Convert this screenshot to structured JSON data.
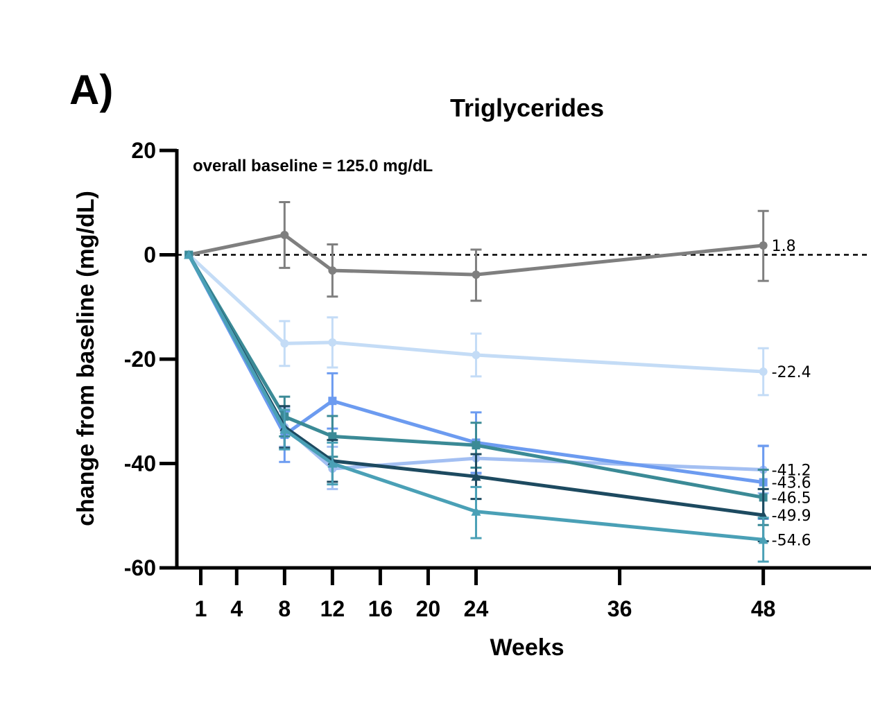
{
  "panel_label": "A)",
  "chart_data": {
    "type": "line",
    "title": "Triglycerides",
    "xlabel": "Weeks",
    "ylabel": "change from baseline (mg/dL)",
    "annotation": "overall baseline = 125.0 mg/dL",
    "xlim": [
      -1,
      57
    ],
    "ylim": [
      -60,
      20
    ],
    "x_ticks": [
      1,
      4,
      8,
      12,
      16,
      20,
      24,
      36,
      48
    ],
    "y_ticks": [
      20,
      0,
      -20,
      -40,
      -60
    ],
    "reference_line": {
      "y": 0,
      "style": "dashed"
    },
    "legend": "none",
    "grid": false,
    "x": [
      0,
      8,
      12,
      24,
      48
    ],
    "series": [
      {
        "color": "#7f7f7f",
        "marker": "circle",
        "values": [
          0,
          3.8,
          -3.0,
          -3.8,
          1.8
        ],
        "err_hi": [
          0,
          6.3,
          5.0,
          4.8,
          6.6
        ],
        "err_lo": [
          0,
          6.3,
          5.0,
          5.0,
          6.8
        ],
        "end_label": "1.8"
      },
      {
        "color": "#c4dcf6",
        "marker": "circle",
        "values": [
          0,
          -17.0,
          -16.8,
          -19.2,
          -22.4
        ],
        "err_hi": [
          0,
          4.3,
          4.8,
          4.1,
          4.5
        ],
        "err_lo": [
          0,
          4.3,
          4.8,
          4.1,
          4.5
        ],
        "end_label": "-22.4"
      },
      {
        "color": "#a3bff2",
        "marker": "circle",
        "values": [
          0,
          -33.0,
          -41.0,
          -39.0,
          -41.2
        ],
        "err_hi": [
          0,
          3.8,
          4.2,
          3.0,
          4.5
        ],
        "err_lo": [
          0,
          3.8,
          3.9,
          3.0,
          4.5
        ],
        "end_label": "-41.2"
      },
      {
        "color": "#6c9bf0",
        "marker": "square",
        "values": [
          0,
          -34.5,
          -28.0,
          -36.0,
          -43.6
        ],
        "err_hi": [
          0,
          4.5,
          5.3,
          5.8,
          7.0
        ],
        "err_lo": [
          0,
          5.2,
          5.3,
          5.8,
          7.0
        ],
        "end_label": "-43.6"
      },
      {
        "color": "#3b8a96",
        "marker": "square",
        "values": [
          0,
          -31.0,
          -34.8,
          -36.5,
          -46.5
        ],
        "err_hi": [
          0,
          3.8,
          3.9,
          4.3,
          5.3
        ],
        "err_lo": [
          0,
          3.8,
          3.9,
          4.3,
          5.3
        ],
        "end_label": "-46.5"
      },
      {
        "color": "#1d4a60",
        "marker": "triangle",
        "values": [
          0,
          -33.0,
          -39.5,
          -42.5,
          -49.9
        ],
        "err_hi": [
          0,
          4.0,
          4.0,
          4.3,
          5.0
        ],
        "err_lo": [
          0,
          4.0,
          4.0,
          4.3,
          5.0
        ],
        "end_label": "-49.9"
      },
      {
        "color": "#4aa0b6",
        "marker": "triangle",
        "values": [
          0,
          -33.5,
          -40.0,
          -49.2,
          -54.6
        ],
        "err_hi": [
          0,
          3.8,
          4.0,
          4.7,
          4.2
        ],
        "err_lo": [
          0,
          3.8,
          4.0,
          5.1,
          4.2
        ],
        "end_label": "-54.6"
      }
    ]
  }
}
